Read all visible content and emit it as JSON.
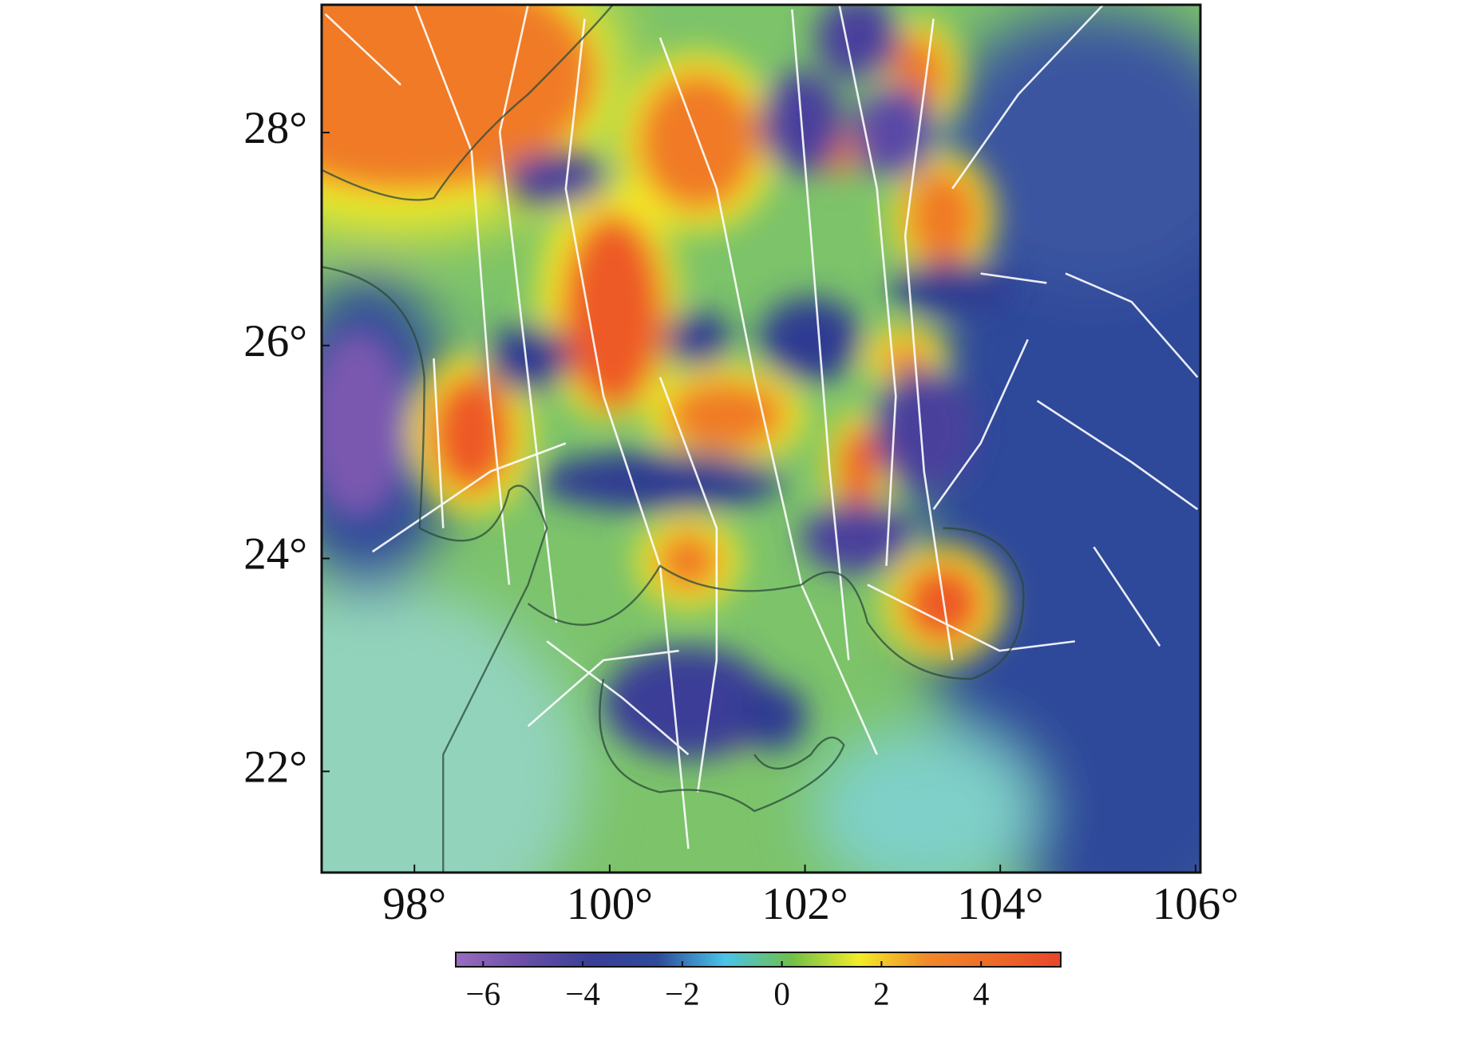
{
  "chart_data": {
    "type": "map",
    "xlim": [
      97.05,
      106.05
    ],
    "ylim": [
      21.05,
      29.2
    ],
    "xticks": [
      {
        "value": 98,
        "label": "98°"
      },
      {
        "value": 100,
        "label": "100°"
      },
      {
        "value": 102,
        "label": "102°"
      },
      {
        "value": 104,
        "label": "104°"
      },
      {
        "value": 106,
        "label": "106°"
      }
    ],
    "yticks": [
      {
        "value": 22,
        "label": "22°"
      },
      {
        "value": 24,
        "label": "24°"
      },
      {
        "value": 26,
        "label": "26°"
      },
      {
        "value": 28,
        "label": "28°"
      }
    ],
    "colorbar": {
      "lim": [
        -6.55,
        5.6
      ],
      "ticks": [
        {
          "value": -6,
          "label": "−6"
        },
        {
          "value": -4,
          "label": "−4"
        },
        {
          "value": -2,
          "label": "−2"
        },
        0,
        2,
        4
      ],
      "colors": [
        "#9a6cc0",
        "#6a4fa8",
        "#3a3e96",
        "#2f4a9a",
        "#4ac3ea",
        "#6fc04a",
        "#f4ec28",
        "#f08a2a",
        "#ee6a28",
        "#e8452a"
      ]
    }
  }
}
